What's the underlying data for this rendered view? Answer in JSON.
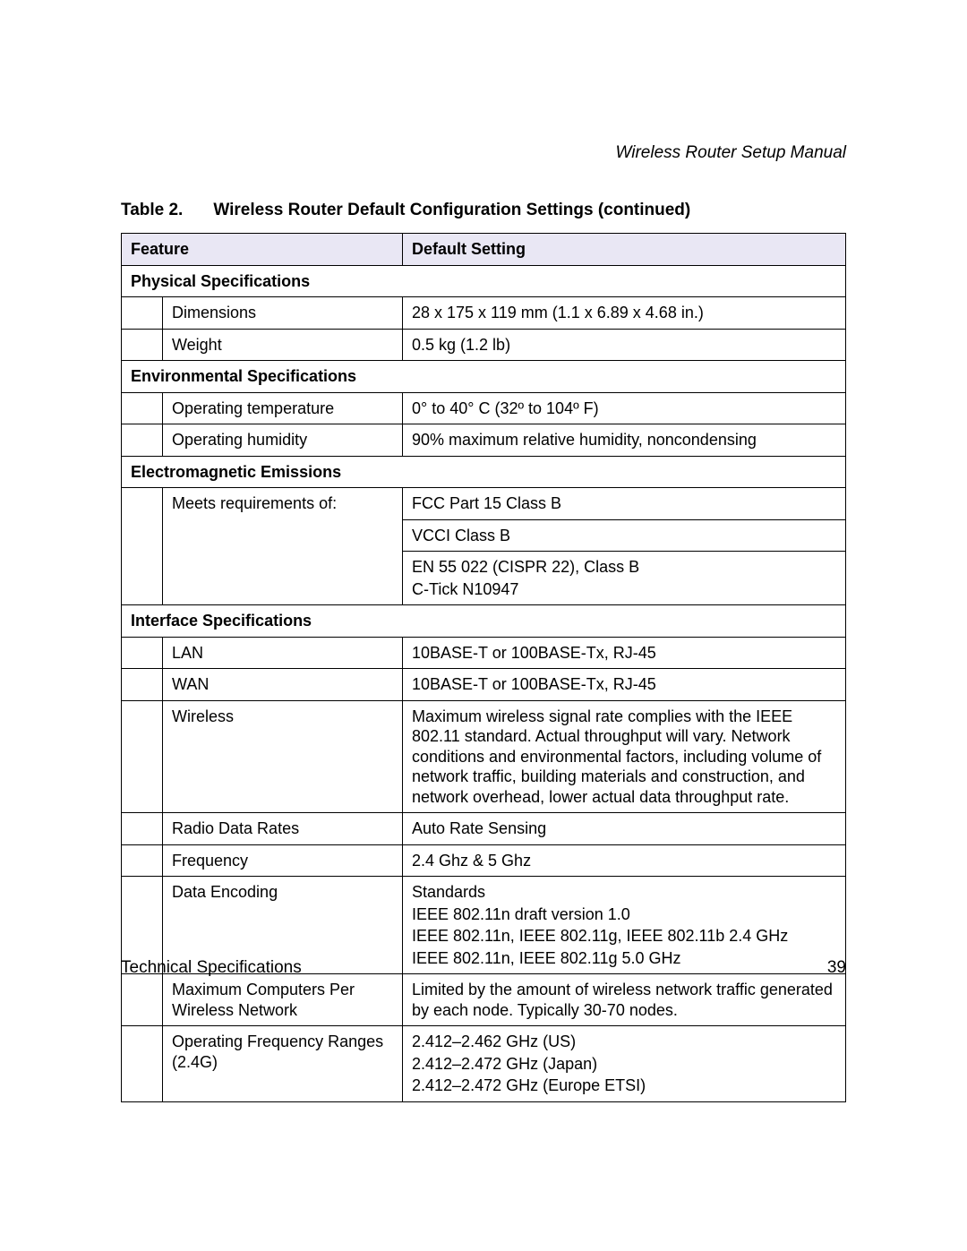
{
  "doc_title": "Wireless Router Setup Manual",
  "table_caption_label": "Table 2.",
  "table_caption_text": "Wireless Router Default Configuration Settings (continued)",
  "col_feature": "Feature",
  "col_default": "Default Setting",
  "sections": {
    "physical": {
      "title": "Physical Specifications",
      "rows": {
        "dimensions": {
          "label": "Dimensions",
          "value": "28 x 175 x 119 mm   (1.1 x 6.89 x 4.68 in.)"
        },
        "weight": {
          "label": "Weight",
          "value": "0.5 kg   (1.2 lb)"
        }
      }
    },
    "environmental": {
      "title": "Environmental Specifications",
      "rows": {
        "op_temp": {
          "label": "Operating temperature",
          "value": "0° to 40° C    (32º to 104º F)"
        },
        "op_humidity": {
          "label": "Operating humidity",
          "value": "90% maximum relative humidity, noncondensing"
        }
      }
    },
    "emissions": {
      "title": "Electromagnetic Emissions",
      "rows": {
        "meets": {
          "label": "Meets requirements of:",
          "lines": {
            "fcc": "FCC Part 15 Class B",
            "vcci": "VCCI Class B",
            "en": "EN 55 022 (CISPR 22), Class B",
            "ctick": "C-Tick N10947"
          }
        }
      }
    },
    "interface": {
      "title": "Interface Specifications",
      "rows": {
        "lan": {
          "label": "LAN",
          "value": "10BASE-T or 100BASE-Tx, RJ-45"
        },
        "wan": {
          "label": "WAN",
          "value": "10BASE-T or 100BASE-Tx, RJ-45"
        },
        "wireless": {
          "label": "Wireless",
          "value": "Maximum wireless signal rate complies with the IEEE 802.11 standard. Actual throughput will vary. Network conditions and environmental factors, including volume of network traffic, building materials and construction, and network overhead, lower actual data throughput rate."
        },
        "radio_rates": {
          "label": "Radio Data Rates",
          "value": "Auto Rate Sensing"
        },
        "frequency": {
          "label": "Frequency",
          "value": "2.4 Ghz & 5 Ghz"
        },
        "encoding": {
          "label": "Data Encoding",
          "lines": {
            "l1": "Standards",
            "l2": "IEEE 802.11n draft version 1.0",
            "l3": "IEEE 802.11n, IEEE 802.11g, IEEE 802.11b 2.4 GHz",
            "l4": "IEEE 802.11n, IEEE 802.11g 5.0 GHz"
          }
        },
        "max_computers": {
          "label": "Maximum Computers Per Wireless Network",
          "value": "Limited by the amount of wireless network traffic generated by each node. Typically 30-70 nodes."
        },
        "op_freq_24": {
          "label": "Operating Frequency Ranges (2.4G)",
          "lines": {
            "us": "2.412–2.462 GHz (US)",
            "jp": "2.412–2.472 GHz (Japan)",
            "eu": "2.412–2.472 GHz (Europe ETSI)"
          }
        }
      }
    }
  },
  "footer_section": "Technical Specifications",
  "footer_page": "39",
  "colors": {
    "header_bg": "#e9e7f4",
    "border": "#000000",
    "text": "#000000",
    "page_bg": "#ffffff"
  }
}
